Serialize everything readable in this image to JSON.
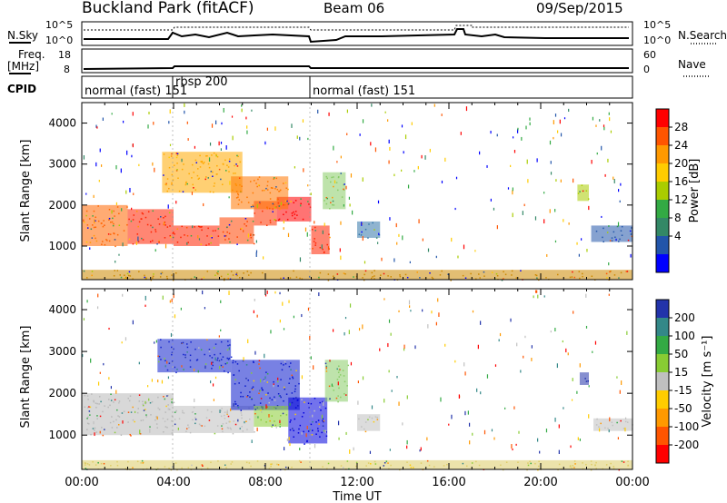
{
  "header": {
    "station": "Buckland Park (fitACF)",
    "beam": "Beam 06",
    "date": "09/Sep/2015"
  },
  "noise_panel": {
    "left_label": "N.Sky",
    "right_label": "N.Search",
    "left_ticks": [
      "10^5",
      "10^0"
    ],
    "right_ticks": [
      "10^5",
      "10^0"
    ]
  },
  "freq_panel": {
    "left_label_line1": "Freq.",
    "left_label_line2": "[MHz]",
    "right_label": "Nave",
    "left_ticks": [
      "18",
      "8"
    ],
    "right_ticks": [
      "60",
      "0"
    ]
  },
  "cpid_panel": {
    "label": "CPID",
    "segments": [
      {
        "text": "normal (fast) 151",
        "start_h": 0,
        "end_h": 4
      },
      {
        "text": "rbsp 200",
        "start_h": 4,
        "end_h": 10
      },
      {
        "text": "normal (fast) 151",
        "start_h": 10,
        "end_h": 24
      }
    ]
  },
  "x_axis": {
    "label": "Time UT",
    "ticks": [
      "00:00",
      "04:00",
      "08:00",
      "12:00",
      "16:00",
      "20:00",
      "00:00"
    ]
  },
  "chart_data": [
    {
      "type": "heatmap",
      "name": "power",
      "ylabel": "Slant Range [km]",
      "yticks": [
        "4000",
        "3000",
        "2000",
        "1000"
      ],
      "ylim": [
        180,
        4500
      ],
      "xlim": [
        0,
        24
      ],
      "colorbar": {
        "label": "Power [dB]",
        "ticks": [
          "28",
          "24",
          "20",
          "16",
          "12",
          "8",
          "4"
        ],
        "colors": [
          "#ff0000",
          "#ff5500",
          "#ff9900",
          "#ffcc00",
          "#aacc00",
          "#33aa44",
          "#338866",
          "#2255aa",
          "#0000ff"
        ]
      },
      "regions": [
        {
          "t0": 0.0,
          "t1": 2.0,
          "r0": 1000,
          "r1": 2000,
          "c": "#ff6600"
        },
        {
          "t0": 2.0,
          "t1": 4.0,
          "r0": 1050,
          "r1": 1900,
          "c": "#ff2200"
        },
        {
          "t0": 4.0,
          "t1": 6.0,
          "r0": 1000,
          "r1": 1500,
          "c": "#ff2200"
        },
        {
          "t0": 6.0,
          "t1": 7.5,
          "r0": 1050,
          "r1": 1700,
          "c": "#ff4400"
        },
        {
          "t0": 7.5,
          "t1": 8.5,
          "r0": 1500,
          "r1": 2100,
          "c": "#ff3300"
        },
        {
          "t0": 8.5,
          "t1": 10.0,
          "r0": 1600,
          "r1": 2200,
          "c": "#ff0000"
        },
        {
          "t0": 10.0,
          "t1": 10.8,
          "r0": 800,
          "r1": 1500,
          "c": "#ff2200"
        },
        {
          "t0": 3.5,
          "t1": 7.0,
          "r0": 2300,
          "r1": 3300,
          "c": "#ffaa00"
        },
        {
          "t0": 6.5,
          "t1": 9.0,
          "r0": 1900,
          "r1": 2700,
          "c": "#ff7700"
        },
        {
          "t0": 10.5,
          "t1": 11.5,
          "r0": 1900,
          "r1": 2800,
          "c": "#88cc66"
        },
        {
          "t0": 12.0,
          "t1": 13.0,
          "r0": 1200,
          "r1": 1600,
          "c": "#3377aa"
        },
        {
          "t0": 21.6,
          "t1": 22.1,
          "r0": 2100,
          "r1": 2500,
          "c": "#aacc00"
        },
        {
          "t0": 22.2,
          "t1": 24.0,
          "r0": 1100,
          "r1": 1500,
          "c": "#2255aa"
        },
        {
          "t0": 0.0,
          "t1": 24.0,
          "r0": 180,
          "r1": 420,
          "c": "#cc8800"
        }
      ]
    },
    {
      "type": "heatmap",
      "name": "velocity",
      "ylabel": "Slant Range [km]",
      "yticks": [
        "4000",
        "3000",
        "2000",
        "1000"
      ],
      "ylim": [
        180,
        4500
      ],
      "xlim": [
        0,
        24
      ],
      "colorbar": {
        "label": "Velocity [m s⁻¹]",
        "ticks": [
          "200",
          "100",
          "50",
          "15",
          "-15",
          "-50",
          "-100",
          "-200"
        ],
        "colors": [
          "#2233aa",
          "#338888",
          "#33aa44",
          "#88cc33",
          "#c0c0c0",
          "#ffcc00",
          "#ff9900",
          "#ff5500",
          "#ff0000"
        ]
      },
      "regions": [
        {
          "t0": 0.0,
          "t1": 4.0,
          "r0": 1000,
          "r1": 2000,
          "c": "#b8b8b8"
        },
        {
          "t0": 4.0,
          "t1": 7.5,
          "r0": 1050,
          "r1": 1700,
          "c": "#c0c0c0"
        },
        {
          "t0": 3.3,
          "t1": 6.5,
          "r0": 2500,
          "r1": 3300,
          "c": "#1122cc"
        },
        {
          "t0": 6.5,
          "t1": 9.5,
          "r0": 1600,
          "r1": 2800,
          "c": "#0a1acc"
        },
        {
          "t0": 9.0,
          "t1": 10.7,
          "r0": 800,
          "r1": 1900,
          "c": "#0000dd"
        },
        {
          "t0": 7.5,
          "t1": 9.0,
          "r0": 1200,
          "r1": 1700,
          "c": "#88cc33"
        },
        {
          "t0": 10.6,
          "t1": 11.6,
          "r0": 1800,
          "r1": 2800,
          "c": "#88cc66"
        },
        {
          "t0": 12.0,
          "t1": 13.0,
          "r0": 1100,
          "r1": 1500,
          "c": "#c0c0c0"
        },
        {
          "t0": 21.7,
          "t1": 22.1,
          "r0": 2200,
          "r1": 2500,
          "c": "#2233aa"
        },
        {
          "t0": 22.3,
          "t1": 24.0,
          "r0": 1100,
          "r1": 1400,
          "c": "#c0c0c0"
        },
        {
          "t0": 0.0,
          "t1": 24.0,
          "r0": 180,
          "r1": 400,
          "c": "#ddcc66"
        }
      ]
    }
  ]
}
